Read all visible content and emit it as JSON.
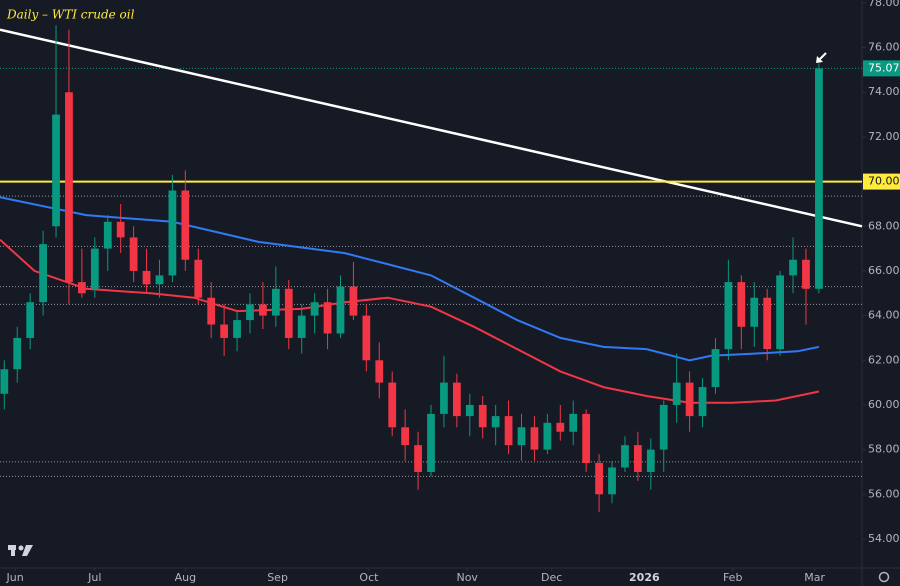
{
  "chart_data": {
    "type": "candlestick",
    "title": "Daily – WTI crude oil",
    "x": [
      1,
      4,
      7,
      10,
      13,
      16,
      19,
      22,
      25,
      28,
      31,
      34,
      37,
      40,
      43,
      46,
      49,
      52,
      55,
      58,
      61,
      64,
      67,
      70,
      73,
      76,
      79,
      82,
      85,
      88,
      91,
      94,
      97,
      100,
      103,
      106,
      109,
      112,
      115,
      118,
      121,
      124,
      127,
      130,
      133,
      136,
      139,
      142,
      145,
      148,
      151,
      154,
      157,
      160,
      163,
      166,
      169,
      172,
      175,
      178,
      181,
      184,
      187,
      190
    ],
    "open": [
      60.5,
      61.6,
      63.0,
      64.6,
      68.0,
      74.0,
      65.5,
      65.2,
      67.0,
      68.2,
      67.5,
      66.0,
      65.4,
      65.8,
      69.6,
      66.5,
      64.8,
      63.6,
      63.0,
      63.8,
      64.5,
      64.0,
      65.2,
      63.0,
      64.0,
      64.6,
      63.2,
      65.3,
      64.0,
      62.0,
      61.0,
      59.0,
      58.2,
      57.0,
      59.6,
      61.0,
      59.5,
      60.0,
      59.0,
      59.5,
      58.2,
      59.0,
      58.0,
      59.2,
      58.8,
      59.6,
      57.4,
      56.0,
      57.2,
      58.2,
      57.0,
      58.0,
      60.0,
      61.0,
      59.5,
      60.8,
      62.5,
      65.5,
      63.5,
      64.8,
      62.5,
      65.8,
      66.5,
      65.2
    ],
    "high": [
      62.0,
      63.5,
      65.0,
      67.8,
      77.0,
      76.8,
      67.0,
      67.5,
      68.5,
      69.0,
      68.0,
      67.0,
      66.5,
      70.3,
      70.5,
      67.0,
      65.5,
      64.5,
      64.2,
      65.0,
      65.5,
      66.2,
      65.6,
      64.5,
      65.0,
      65.2,
      65.8,
      66.4,
      64.5,
      62.8,
      61.5,
      59.8,
      58.8,
      60.0,
      62.2,
      61.4,
      60.5,
      60.4,
      60.0,
      60.2,
      59.6,
      59.5,
      59.6,
      60.0,
      60.2,
      59.8,
      57.8,
      57.5,
      58.6,
      58.8,
      58.5,
      60.2,
      62.3,
      61.5,
      61.2,
      63.0,
      66.5,
      65.8,
      65.5,
      65.2,
      66.0,
      67.5,
      67.0,
      75.3
    ],
    "low": [
      59.8,
      61.0,
      62.5,
      64.0,
      67.5,
      64.5,
      64.8,
      64.8,
      66.0,
      66.8,
      65.5,
      65.0,
      64.8,
      65.5,
      66.0,
      64.5,
      63.0,
      62.2,
      62.4,
      63.2,
      63.4,
      63.5,
      62.5,
      62.3,
      63.2,
      62.5,
      63.0,
      63.8,
      61.5,
      60.3,
      58.6,
      57.5,
      56.2,
      56.8,
      59.0,
      59.0,
      58.6,
      58.5,
      58.2,
      57.8,
      57.5,
      57.5,
      57.8,
      58.4,
      58.2,
      57.0,
      55.2,
      55.6,
      57.0,
      56.6,
      56.2,
      57.0,
      59.2,
      58.8,
      59.0,
      60.5,
      62.0,
      62.5,
      62.6,
      62.0,
      62.2,
      65.0,
      63.6,
      65.0
    ],
    "close": [
      61.6,
      63.0,
      64.6,
      67.2,
      73.0,
      65.5,
      65.0,
      67.0,
      68.2,
      67.5,
      66.0,
      65.4,
      65.8,
      69.6,
      66.5,
      64.8,
      63.6,
      63.0,
      63.8,
      64.5,
      64.0,
      65.2,
      63.0,
      64.0,
      64.6,
      63.2,
      65.3,
      64.0,
      62.0,
      61.0,
      59.0,
      58.2,
      57.0,
      59.6,
      61.0,
      59.5,
      60.0,
      59.0,
      59.5,
      58.2,
      59.0,
      58.0,
      59.2,
      58.8,
      59.6,
      57.4,
      56.0,
      57.2,
      58.2,
      57.0,
      58.0,
      60.0,
      61.0,
      59.5,
      60.8,
      62.5,
      65.5,
      63.5,
      64.8,
      62.5,
      65.8,
      66.5,
      65.2,
      75.07
    ],
    "up_color": "#089981",
    "down_color": "#f23645",
    "xlim": [
      0,
      200
    ],
    "xticks": [
      {
        "value": 3.5,
        "label": "Jun"
      },
      {
        "value": 22,
        "label": "Jul"
      },
      {
        "value": 43,
        "label": "Aug"
      },
      {
        "value": 64.4,
        "label": "Sep"
      },
      {
        "value": 85.6,
        "label": "Oct"
      },
      {
        "value": 108.4,
        "label": "Nov"
      },
      {
        "value": 128,
        "label": "Dec"
      },
      {
        "value": 149.5,
        "label": "2026"
      },
      {
        "value": 170,
        "label": "Feb"
      },
      {
        "value": 189,
        "label": "Mar"
      }
    ],
    "ylim": [
      52.7,
      78.13
    ],
    "yticks": [
      {
        "value": 54,
        "label": "54.00"
      },
      {
        "value": 56,
        "label": "56.00"
      },
      {
        "value": 58,
        "label": "58.00"
      },
      {
        "value": 60,
        "label": "60.00"
      },
      {
        "value": 62,
        "label": "62.00"
      },
      {
        "value": 64,
        "label": "64.00"
      },
      {
        "value": 66,
        "label": "66.00"
      },
      {
        "value": 68,
        "label": "68.00"
      },
      {
        "value": 70,
        "label": "70.00"
      },
      {
        "value": 72,
        "label": "72.00"
      },
      {
        "value": 74,
        "label": "74.00"
      },
      {
        "value": 76,
        "label": "76.00"
      },
      {
        "value": 78,
        "label": "78.00"
      }
    ],
    "lines": [
      {
        "color": "#3179f5",
        "x": [
          0,
          20,
          40,
          60,
          80,
          100,
          110,
          120,
          130,
          140,
          150,
          160,
          165,
          175,
          185,
          190
        ],
        "values": [
          69.3,
          68.5,
          68.2,
          67.3,
          66.8,
          65.8,
          64.8,
          63.8,
          63.0,
          62.6,
          62.5,
          62.0,
          62.2,
          62.3,
          62.4,
          62.6
        ]
      },
      {
        "color": "#f23645",
        "x": [
          0,
          8,
          20,
          35,
          45,
          55,
          70,
          80,
          90,
          100,
          110,
          120,
          130,
          140,
          150,
          160,
          170,
          180,
          190
        ],
        "values": [
          67.4,
          66.0,
          65.2,
          65.0,
          64.8,
          64.2,
          64.3,
          64.6,
          64.8,
          64.4,
          63.5,
          62.5,
          61.5,
          60.8,
          60.4,
          60.1,
          60.1,
          60.2,
          60.6
        ]
      },
      {
        "color": "#ffffff",
        "x": [
          0,
          200
        ],
        "values": [
          76.8,
          68.0
        ]
      }
    ],
    "horizontal_line": {
      "value": 70,
      "label": "70.00",
      "color": "#ffeb3b"
    },
    "last_price": {
      "value": 75.07,
      "label": "75.07",
      "color": "#089981"
    },
    "levels": [
      69.35,
      67.1,
      65.3,
      64.5,
      57.45,
      56.8
    ]
  }
}
